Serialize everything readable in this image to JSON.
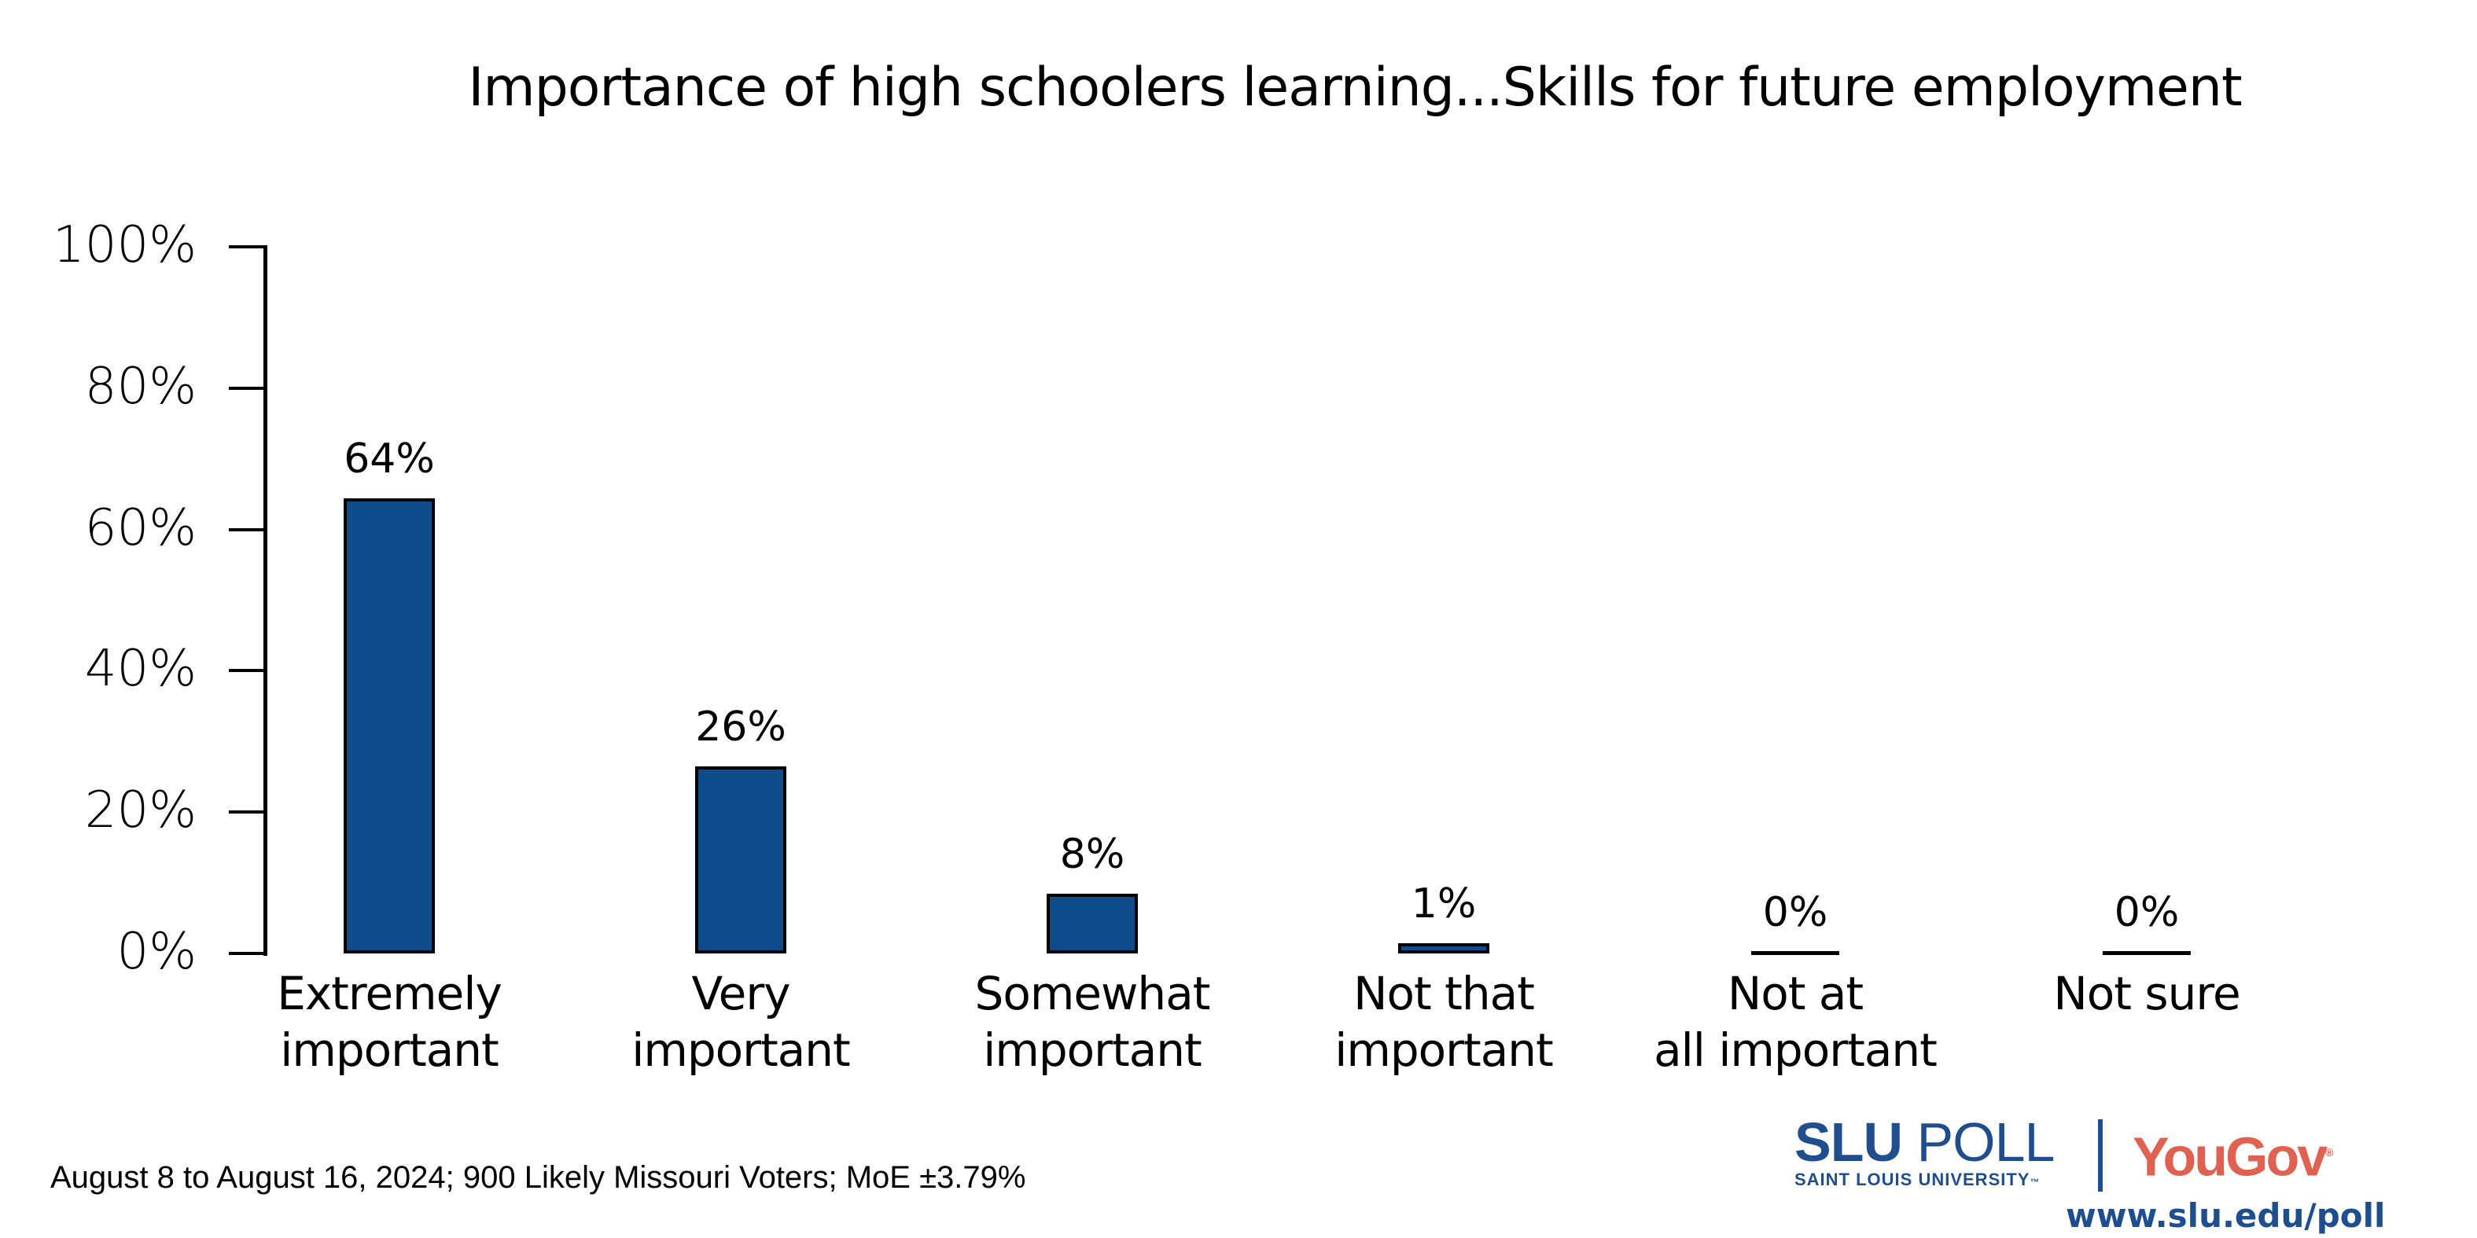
{
  "title": "Importance of high schoolers learning...Skills for future employment",
  "y_axis": {
    "ticks": [
      {
        "label": "100%",
        "value": 100
      },
      {
        "label": "80%",
        "value": 80
      },
      {
        "label": "60%",
        "value": 60
      },
      {
        "label": "40%",
        "value": 40
      },
      {
        "label": "20%",
        "value": 20
      },
      {
        "label": "0%",
        "value": 0
      }
    ]
  },
  "bars": [
    {
      "line1": "Extremely",
      "line2": "important",
      "value": 64,
      "label": "64%"
    },
    {
      "line1": "Very",
      "line2": "important",
      "value": 26,
      "label": "26%"
    },
    {
      "line1": "Somewhat",
      "line2": "important",
      "value": 8,
      "label": "8%"
    },
    {
      "line1": "Not that",
      "line2": "important",
      "value": 1,
      "label": "1%"
    },
    {
      "line1": "Not at",
      "line2": "all important",
      "value": 0,
      "label": "0%"
    },
    {
      "line1": "Not sure",
      "line2": "",
      "value": 0,
      "label": "0%"
    }
  ],
  "footnote": "August 8 to August 16, 2024; 900 Likely Missouri Voters; MoE ±3.79%",
  "logo": {
    "slu_bold": "SLU",
    "slu_poll": "POLL",
    "slu_sub": "SAINT LOUIS UNIVERSITY",
    "slu_tm": "™",
    "yougov": "YouGov",
    "yougov_reg": "®",
    "url": "www.slu.edu/poll"
  },
  "colors": {
    "bar": "#0F4C8A",
    "slu_blue": "#1F4E8F",
    "yougov_red": "#E0614F"
  },
  "chart_data": {
    "type": "bar",
    "title": "Importance of high schoolers learning...Skills for future employment",
    "categories": [
      "Extremely important",
      "Very important",
      "Somewhat important",
      "Not that important",
      "Not at all important",
      "Not sure"
    ],
    "values": [
      64,
      26,
      8,
      1,
      0,
      0
    ],
    "data_labels": [
      "64%",
      "26%",
      "8%",
      "1%",
      "0%",
      "0%"
    ],
    "xlabel": "",
    "ylabel": "",
    "ylim": [
      0,
      100
    ],
    "yticks": [
      "0%",
      "20%",
      "40%",
      "60%",
      "80%",
      "100%"
    ],
    "grid": false,
    "legend": null,
    "annotations": [
      "August 8 to August 16, 2024; 900 Likely Missouri Voters; MoE ±3.79%"
    ]
  }
}
